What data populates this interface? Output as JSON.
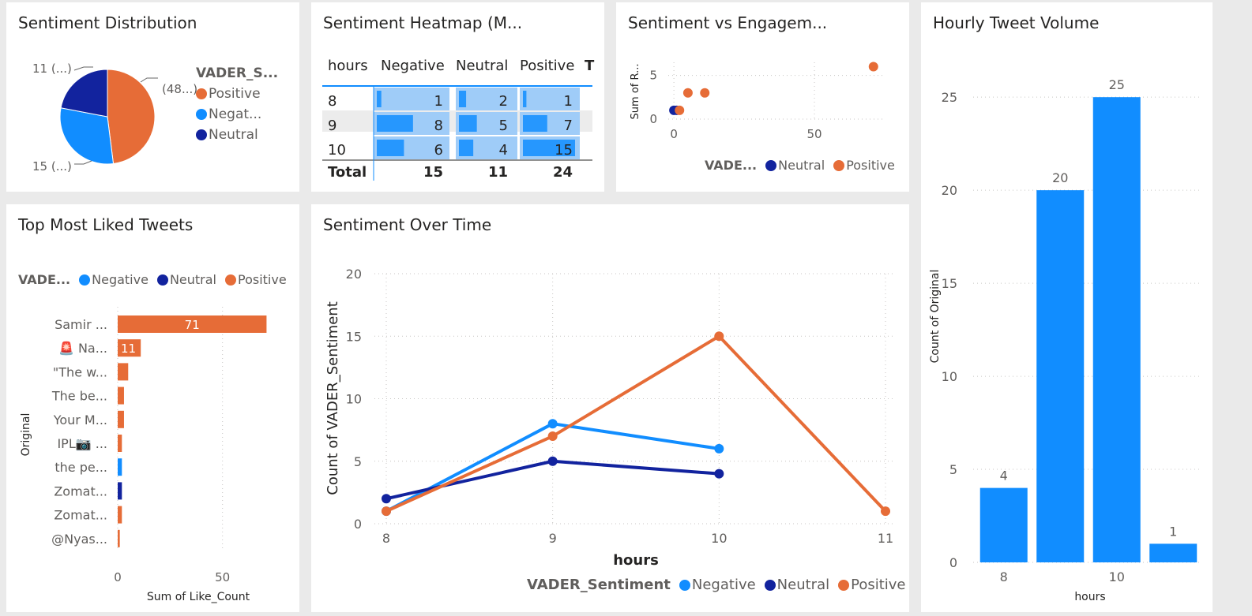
{
  "colors": {
    "positive": "#e66c37",
    "negative": "#118dff",
    "neutral": "#12239e"
  },
  "pie": {
    "title": "Sentiment Distribution",
    "legend_title": "VADER_S...",
    "legend": [
      "Positive",
      "Negat...",
      "Neutral"
    ],
    "labels": {
      "positive": "(48...)",
      "neutral": "11 (...)",
      "negative": "15 (...)"
    },
    "chart_data": {
      "type": "pie",
      "categories": [
        "Positive",
        "Negative",
        "Neutral"
      ],
      "values": [
        24,
        15,
        11
      ]
    }
  },
  "heatmap": {
    "title": "Sentiment Heatmap (M...",
    "columns": [
      "hours",
      "Negative",
      "Neutral",
      "Positive",
      "T"
    ],
    "rows": [
      {
        "hour": "8",
        "neg": "1",
        "neu": "2",
        "pos": "1"
      },
      {
        "hour": "9",
        "neg": "8",
        "neu": "5",
        "pos": "7"
      },
      {
        "hour": "10",
        "neg": "6",
        "neu": "4",
        "pos": "15"
      }
    ],
    "total": {
      "label": "Total",
      "neg": "15",
      "neu": "11",
      "pos": "24"
    }
  },
  "scatter": {
    "title": "Sentiment vs Engagem...",
    "ylabel": "Sum of R...",
    "legend_title": "VADE...",
    "legend": [
      "Neutral",
      "Positive"
    ],
    "xticks": [
      "0",
      "50"
    ],
    "yticks": [
      "0",
      "5"
    ],
    "chart_data": {
      "type": "scatter",
      "series": [
        {
          "name": "Neutral",
          "points": [
            [
              0,
              1
            ],
            [
              1,
              1
            ]
          ]
        },
        {
          "name": "Positive",
          "points": [
            [
              2,
              1
            ],
            [
              5,
              3
            ],
            [
              11,
              3
            ],
            [
              71,
              6
            ]
          ]
        }
      ],
      "xlim": [
        -2,
        75
      ],
      "ylim": [
        0,
        6.5
      ]
    }
  },
  "hourly": {
    "title": "Hourly Tweet Volume",
    "ylabel": "Count of Original",
    "xlabel": "hours",
    "chart_data": {
      "type": "bar",
      "categories": [
        "8",
        "9",
        "10",
        "11"
      ],
      "tick_labels": [
        "8",
        "",
        "10",
        ""
      ],
      "values": [
        4,
        20,
        25,
        1
      ],
      "yticks": [
        0,
        5,
        10,
        15,
        20,
        25
      ],
      "ylim": [
        0,
        27
      ]
    }
  },
  "liked": {
    "title": "Top Most Liked Tweets",
    "legend_title": "VADE...",
    "legend": [
      "Negative",
      "Neutral",
      "Positive"
    ],
    "ylabel": "Original",
    "xlabel": "Sum of Like_Count",
    "xticks": [
      "0",
      "50"
    ],
    "chart_data": {
      "type": "bar",
      "orientation": "horizontal",
      "categories": [
        "Samir ...",
        "🚨 Na...",
        "\"The w...",
        "The be...",
        "Your M...",
        "IPL📷 ...",
        "the pe...",
        "Zomat...",
        "Zomat...",
        "@Nyas..."
      ],
      "values": [
        71,
        11,
        5,
        3,
        3,
        2,
        2,
        2,
        2,
        1
      ],
      "sentiment": [
        "Positive",
        "Positive",
        "Positive",
        "Positive",
        "Positive",
        "Positive",
        "Negative",
        "Neutral",
        "Positive",
        "Positive"
      ],
      "data_labels": [
        "71",
        "11",
        "",
        "",
        "",
        "",
        "",
        "",
        "",
        ""
      ],
      "xlim": [
        0,
        78
      ]
    }
  },
  "overtime": {
    "title": "Sentiment Over Time",
    "ylabel": "Count of VADER_Sentiment",
    "xlabel": "hours",
    "legend_title": "VADER_Sentiment",
    "legend": [
      "Negative",
      "Neutral",
      "Positive"
    ],
    "chart_data": {
      "type": "line",
      "x": [
        8,
        9,
        10,
        11
      ],
      "series": [
        {
          "name": "Negative",
          "values": [
            1,
            8,
            6,
            null
          ]
        },
        {
          "name": "Neutral",
          "values": [
            2,
            5,
            4,
            null
          ]
        },
        {
          "name": "Positive",
          "values": [
            1,
            7,
            15,
            1
          ]
        }
      ],
      "yticks": [
        0,
        5,
        10,
        15,
        20
      ],
      "ylim": [
        0,
        20
      ]
    }
  }
}
